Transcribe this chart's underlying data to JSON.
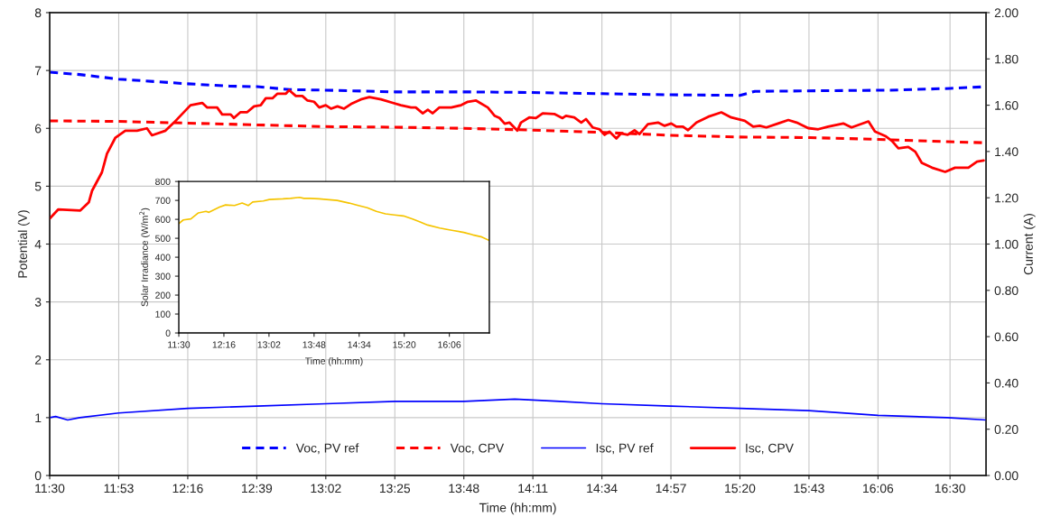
{
  "chart_data": [
    {
      "type": "line",
      "xlabel": "Time (hh:mm)",
      "ylabel": "Potential (V)",
      "y2label": "Current (A)",
      "xlim": [
        11.5,
        16.7
      ],
      "xticks": [
        {
          "value": 11.5,
          "label": "11:30"
        },
        {
          "value": 11.8833,
          "label": "11:53"
        },
        {
          "value": 12.2667,
          "label": "12:16"
        },
        {
          "value": 12.65,
          "label": "12:39"
        },
        {
          "value": 13.0333,
          "label": "13:02"
        },
        {
          "value": 13.4167,
          "label": "13:25"
        },
        {
          "value": 13.8,
          "label": "13:48"
        },
        {
          "value": 14.1833,
          "label": "14:11"
        },
        {
          "value": 14.5667,
          "label": "14:34"
        },
        {
          "value": 14.95,
          "label": "14:57"
        },
        {
          "value": 15.3333,
          "label": "15:20"
        },
        {
          "value": 15.7167,
          "label": "15:43"
        },
        {
          "value": 16.1,
          "label": "16:06"
        },
        {
          "value": 16.5,
          "label": "16:30"
        }
      ],
      "ylim": [
        0,
        8
      ],
      "yticks": [
        0,
        1,
        2,
        3,
        4,
        5,
        6,
        7,
        8
      ],
      "y2lim": [
        0,
        2
      ],
      "y2ticks": [
        {
          "value": 0,
          "label": "0.00"
        },
        {
          "value": 0.2,
          "label": "0.20"
        },
        {
          "value": 0.4,
          "label": "0.40"
        },
        {
          "value": 0.6,
          "label": "0.60"
        },
        {
          "value": 0.8,
          "label": "0.80"
        },
        {
          "value": 1,
          "label": "1.00"
        },
        {
          "value": 1.2,
          "label": "1.20"
        },
        {
          "value": 1.4,
          "label": "1.40"
        },
        {
          "value": 1.6,
          "label": "1.60"
        },
        {
          "value": 1.8,
          "label": "1.80"
        },
        {
          "value": 2,
          "label": "2.00"
        }
      ],
      "grid": true,
      "legend": "bottom",
      "series": [
        {
          "name": "Voc, PV ref",
          "color": "#0000ff",
          "line_style": "dashed",
          "x": [
            11.5,
            11.667,
            11.883,
            12.267,
            12.5,
            12.65,
            12.833,
            13.033,
            13.417,
            13.833,
            14.167,
            14.567,
            14.95,
            15.333,
            15.417,
            15.8,
            16.167,
            16.5,
            16.7
          ],
          "values": [
            6.97,
            6.93,
            6.85,
            6.77,
            6.73,
            6.72,
            6.67,
            6.66,
            6.63,
            6.63,
            6.62,
            6.6,
            6.58,
            6.57,
            6.64,
            6.65,
            6.66,
            6.69,
            6.72
          ]
        },
        {
          "name": "Voc, CPV",
          "color": "#ff0000",
          "line_style": "dashed",
          "x": [
            11.5,
            11.883,
            12.267,
            12.65,
            13.033,
            13.417,
            13.8,
            14.183,
            14.567,
            14.95,
            15.333,
            15.717,
            16.1,
            16.483,
            16.7
          ],
          "values": [
            6.13,
            6.12,
            6.09,
            6.06,
            6.03,
            6.02,
            6.0,
            5.97,
            5.93,
            5.88,
            5.85,
            5.84,
            5.81,
            5.77,
            5.75
          ]
        },
        {
          "name": "Isc, PV ref",
          "color": "#0000ff",
          "line_style": "solid",
          "axis": "y2",
          "x": [
            11.5,
            11.533,
            11.6,
            11.667,
            11.883,
            12.267,
            12.65,
            13.033,
            13.417,
            13.8,
            14.083,
            14.333,
            14.567,
            14.95,
            15.333,
            15.717,
            16.1,
            16.483,
            16.7
          ],
          "values": [
            0.25,
            0.255,
            0.24,
            0.25,
            0.27,
            0.29,
            0.3,
            0.31,
            0.32,
            0.32,
            0.33,
            0.32,
            0.31,
            0.3,
            0.29,
            0.28,
            0.26,
            0.25,
            0.24
          ]
        },
        {
          "name": "Isc, CPV",
          "color": "#ff0000",
          "line_style": "solid",
          "axis": "y2",
          "x": [
            11.5,
            11.548,
            11.67,
            11.717,
            11.735,
            11.79,
            11.818,
            11.865,
            11.92,
            11.985,
            12.04,
            12.068,
            12.143,
            12.19,
            12.282,
            12.347,
            12.375,
            12.43,
            12.458,
            12.505,
            12.523,
            12.56,
            12.597,
            12.635,
            12.672,
            12.7,
            12.737,
            12.765,
            12.812,
            12.83,
            12.867,
            12.903,
            12.932,
            12.968,
            12.997,
            13.033,
            13.062,
            13.098,
            13.135,
            13.173,
            13.228,
            13.275,
            13.34,
            13.405,
            13.45,
            13.507,
            13.533,
            13.572,
            13.6,
            13.627,
            13.663,
            13.73,
            13.785,
            13.822,
            13.868,
            13.933,
            13.97,
            13.998,
            14.027,
            14.053,
            14.097,
            14.117,
            14.163,
            14.2,
            14.238,
            14.302,
            14.348,
            14.367,
            14.413,
            14.452,
            14.478,
            14.515,
            14.553,
            14.582,
            14.608,
            14.647,
            14.673,
            14.71,
            14.748,
            14.775,
            14.822,
            14.878,
            14.915,
            14.952,
            14.98,
            15.017,
            15.045,
            15.092,
            15.157,
            15.23,
            15.285,
            15.36,
            15.407,
            15.443,
            15.48,
            15.545,
            15.602,
            15.648,
            15.712,
            15.768,
            15.823,
            15.907,
            15.953,
            16.047,
            16.083,
            16.14,
            16.177,
            16.213,
            16.268,
            16.307,
            16.343,
            16.4,
            16.473,
            16.528,
            16.602,
            16.65,
            16.687
          ],
          "values": [
            1.11,
            1.15,
            1.145,
            1.18,
            1.23,
            1.31,
            1.39,
            1.46,
            1.49,
            1.49,
            1.5,
            1.47,
            1.49,
            1.525,
            1.6,
            1.61,
            1.59,
            1.59,
            1.56,
            1.56,
            1.545,
            1.57,
            1.57,
            1.595,
            1.6,
            1.63,
            1.63,
            1.65,
            1.65,
            1.665,
            1.64,
            1.64,
            1.62,
            1.615,
            1.59,
            1.6,
            1.585,
            1.595,
            1.585,
            1.605,
            1.625,
            1.635,
            1.625,
            1.61,
            1.6,
            1.59,
            1.59,
            1.565,
            1.58,
            1.565,
            1.59,
            1.59,
            1.6,
            1.615,
            1.62,
            1.59,
            1.555,
            1.545,
            1.52,
            1.525,
            1.49,
            1.525,
            1.547,
            1.544,
            1.565,
            1.562,
            1.544,
            1.554,
            1.547,
            1.525,
            1.54,
            1.504,
            1.496,
            1.472,
            1.486,
            1.456,
            1.478,
            1.472,
            1.492,
            1.475,
            1.518,
            1.525,
            1.511,
            1.521,
            1.507,
            1.507,
            1.492,
            1.525,
            1.55,
            1.569,
            1.547,
            1.533,
            1.507,
            1.511,
            1.504,
            1.521,
            1.536,
            1.525,
            1.501,
            1.496,
            1.507,
            1.521,
            1.504,
            1.53,
            1.486,
            1.467,
            1.446,
            1.414,
            1.42,
            1.399,
            1.351,
            1.33,
            1.312,
            1.33,
            1.33,
            1.356,
            1.361
          ]
        }
      ]
    },
    {
      "type": "line",
      "xlabel": "Time (hh:mm)",
      "ylabel": "Solar Irradiance (W/m$^{2}$)",
      "xlim": [
        11.5,
        16.78
      ],
      "xticks": [
        {
          "value": 11.5,
          "label": "11:30"
        },
        {
          "value": 12.2667,
          "label": "12:16"
        },
        {
          "value": 13.0333,
          "label": "13:02"
        },
        {
          "value": 13.8,
          "label": "13:48"
        },
        {
          "value": 14.5667,
          "label": "14:34"
        },
        {
          "value": 15.3333,
          "label": "15:20"
        },
        {
          "value": 16.1,
          "label": "16:06"
        }
      ],
      "ylim": [
        0,
        800
      ],
      "yticks": [
        0,
        100,
        200,
        300,
        400,
        500,
        600,
        700,
        800
      ],
      "grid": false,
      "legend": false,
      "series": [
        {
          "color": "#f5c400",
          "line_style": "solid",
          "x": [
            11.5,
            11.577,
            11.705,
            11.833,
            11.962,
            12.013,
            12.192,
            12.295,
            12.448,
            12.577,
            12.68,
            12.757,
            12.937,
            13.038,
            13.27,
            13.397,
            13.552,
            13.628,
            13.73,
            13.885,
            14.013,
            14.192,
            14.397,
            14.552,
            14.705,
            14.858,
            15.013,
            15.167,
            15.32,
            15.475,
            15.603,
            15.73,
            15.937,
            16.142,
            16.347,
            16.5,
            16.653,
            16.78
          ],
          "values": [
            578,
            597,
            602,
            634,
            642,
            637,
            665,
            676,
            673,
            686,
            673,
            692,
            697,
            705,
            708,
            711,
            716,
            711,
            711,
            708,
            705,
            700,
            686,
            673,
            661,
            642,
            629,
            623,
            618,
            602,
            586,
            570,
            554,
            542,
            531,
            518,
            507,
            488
          ]
        }
      ]
    }
  ]
}
